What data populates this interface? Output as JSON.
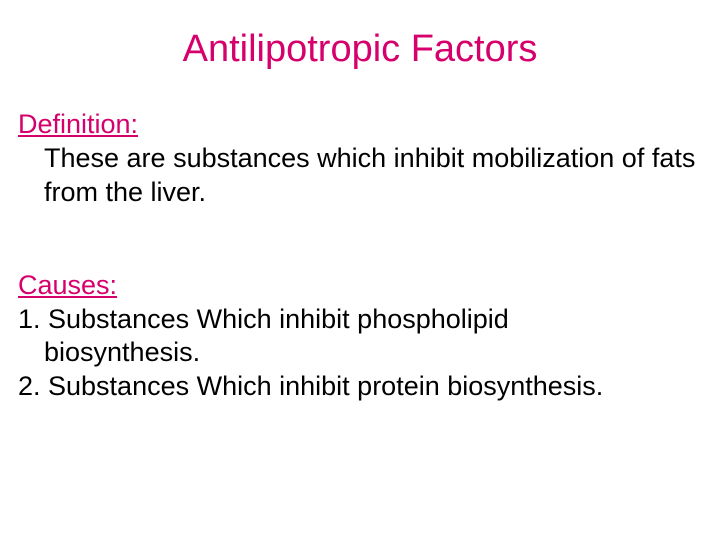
{
  "title": {
    "text": "Antilipotropic Factors",
    "color": "#d6006c"
  },
  "definition": {
    "label": "Definition:",
    "label_color": "#d6006c",
    "body": "These are substances which inhibit mobilization of fats from the liver.",
    "body_color": "#000000"
  },
  "causes": {
    "label": "Causes:",
    "label_color": "#d6006c",
    "item1_num": "1. Substances Which inhibit phospholipid",
    "item1_cont": "biosynthesis.",
    "item2": "2. Substances Which inhibit protein biosynthesis.",
    "body_color": "#000000"
  },
  "typography": {
    "title_fontsize": 38,
    "body_fontsize": 27
  },
  "background_color": "#ffffff"
}
